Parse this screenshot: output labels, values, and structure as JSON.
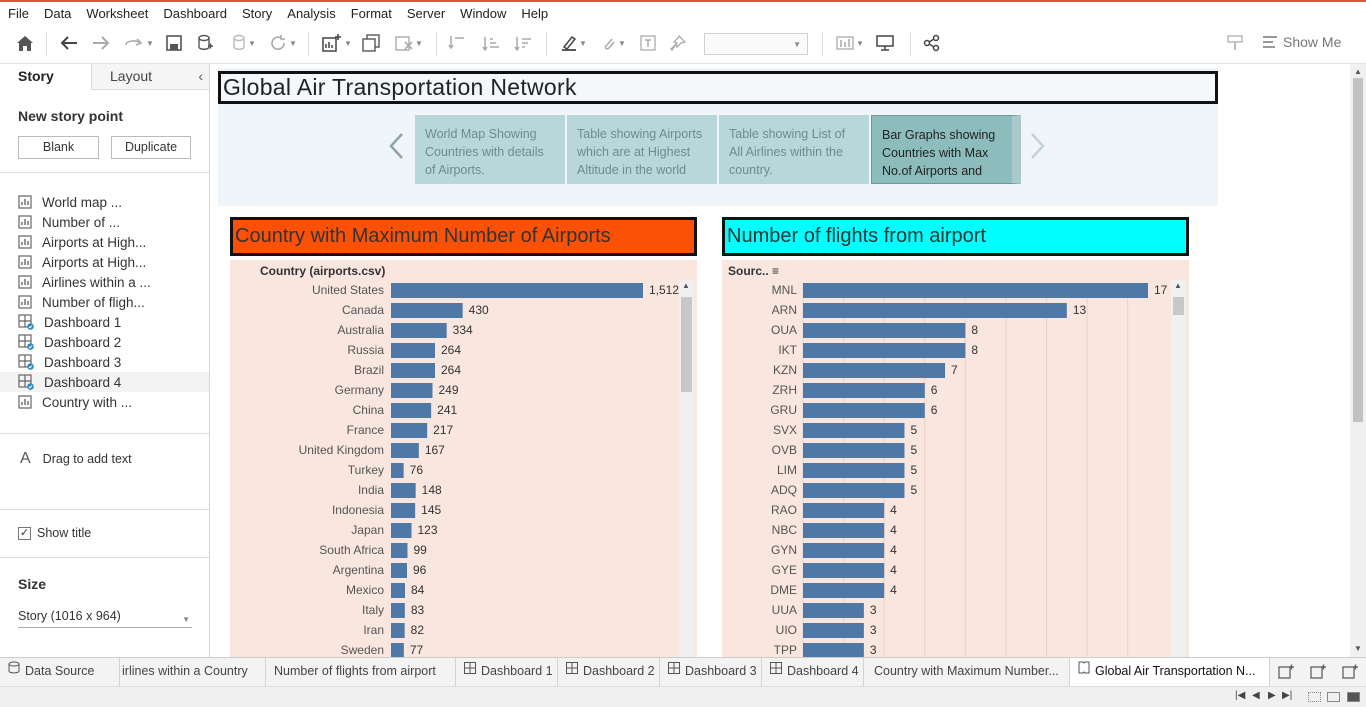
{
  "menu": [
    "File",
    "Data",
    "Worksheet",
    "Dashboard",
    "Story",
    "Analysis",
    "Format",
    "Server",
    "Window",
    "Help"
  ],
  "toolbar": {
    "show_me": "Show Me"
  },
  "left_pane": {
    "tab_story": "Story",
    "tab_layout": "Layout",
    "new_story_point": "New story point",
    "blank": "Blank",
    "duplicate": "Duplicate",
    "items": [
      {
        "label": "World map ...",
        "type": "sheet"
      },
      {
        "label": "Number of ...",
        "type": "sheet"
      },
      {
        "label": "Airports at High...",
        "type": "sheet"
      },
      {
        "label": "Airports at High...",
        "type": "sheet"
      },
      {
        "label": "Airlines within a ...",
        "type": "sheet"
      },
      {
        "label": "Number of fligh...",
        "type": "sheet"
      },
      {
        "label": "Dashboard 1",
        "type": "dashboard"
      },
      {
        "label": "Dashboard 2",
        "type": "dashboard"
      },
      {
        "label": "Dashboard 3",
        "type": "dashboard"
      },
      {
        "label": "Dashboard 4",
        "type": "dashboard",
        "selected": true
      },
      {
        "label": "Country with ...",
        "type": "sheet"
      }
    ],
    "drag_text": "Drag to add text",
    "show_title": "Show title",
    "size_title": "Size",
    "size_value": "Story (1016 x 964)"
  },
  "story": {
    "title": "Global Air Transportation Network",
    "points": [
      {
        "text": "World Map Showing Countries with details of  Airports.",
        "active": false
      },
      {
        "text": "Table showing Airports which are at Highest Altitude in the world",
        "active": false
      },
      {
        "text": "Table showing List of All Airlines within the country.",
        "active": false
      },
      {
        "text": "Bar Graphs showing Countries  with Max No.of Airports and",
        "active": true
      }
    ]
  },
  "chart_left_title": "Country with Maximum Number of Airports",
  "chart_right_title": "Number of flights from airport",
  "chart_data": [
    {
      "type": "bar",
      "orientation": "horizontal",
      "title": "Country with Maximum Number of Airports",
      "row_header": "Country (airports.csv)",
      "categories": [
        "United States",
        "Canada",
        "Australia",
        "Russia",
        "Brazil",
        "Germany",
        "China",
        "France",
        "United Kingdom",
        "Turkey",
        "India",
        "Indonesia",
        "Japan",
        "South Africa",
        "Argentina",
        "Mexico",
        "Italy",
        "Iran",
        "Sweden"
      ],
      "values": [
        1512,
        430,
        334,
        264,
        264,
        249,
        241,
        217,
        167,
        76,
        148,
        145,
        123,
        99,
        96,
        84,
        83,
        82,
        77
      ],
      "value_labels": [
        "1,512",
        "430",
        "334",
        "264",
        "264",
        "249",
        "241",
        "217",
        "167",
        "76",
        "148",
        "145",
        "123",
        "99",
        "96",
        "84",
        "83",
        "82",
        "77"
      ],
      "xlim": [
        0,
        1512
      ],
      "bar_color": "#4e79a7"
    },
    {
      "type": "bar",
      "orientation": "horizontal",
      "title": "Number of flights from airport",
      "row_header": "Sourc..",
      "categories": [
        "MNL",
        "ARN",
        "OUA",
        "IKT",
        "KZN",
        "ZRH",
        "GRU",
        "SVX",
        "OVB",
        "LIM",
        "ADQ",
        "RAO",
        "NBC",
        "GYN",
        "GYE",
        "DME",
        "UUA",
        "UIO",
        "TPP"
      ],
      "values": [
        17,
        13,
        8,
        8,
        7,
        6,
        6,
        5,
        5,
        5,
        5,
        4,
        4,
        4,
        4,
        4,
        3,
        3,
        3
      ],
      "value_labels": [
        "17",
        "13",
        "8",
        "8",
        "7",
        "6",
        "6",
        "5",
        "5",
        "5",
        "5",
        "4",
        "4",
        "4",
        "4",
        "4",
        "3",
        "3",
        "3"
      ],
      "xlim": [
        0,
        17
      ],
      "grid": true,
      "bar_color": "#4e79a7"
    }
  ],
  "sheet_tabs": [
    {
      "label": "Data Source",
      "icon": "db"
    },
    {
      "label": "irlines within a Country",
      "icon": ""
    },
    {
      "label": "Number of flights from airport",
      "icon": ""
    },
    {
      "label": "Dashboard 1",
      "icon": "dash"
    },
    {
      "label": "Dashboard 2",
      "icon": "dash"
    },
    {
      "label": "Dashboard 3",
      "icon": "dash"
    },
    {
      "label": "Dashboard 4",
      "icon": "dash"
    },
    {
      "label": "Country with Maximum Number...",
      "icon": ""
    },
    {
      "label": "Global Air Transportation N...",
      "icon": "story",
      "active": true
    }
  ]
}
